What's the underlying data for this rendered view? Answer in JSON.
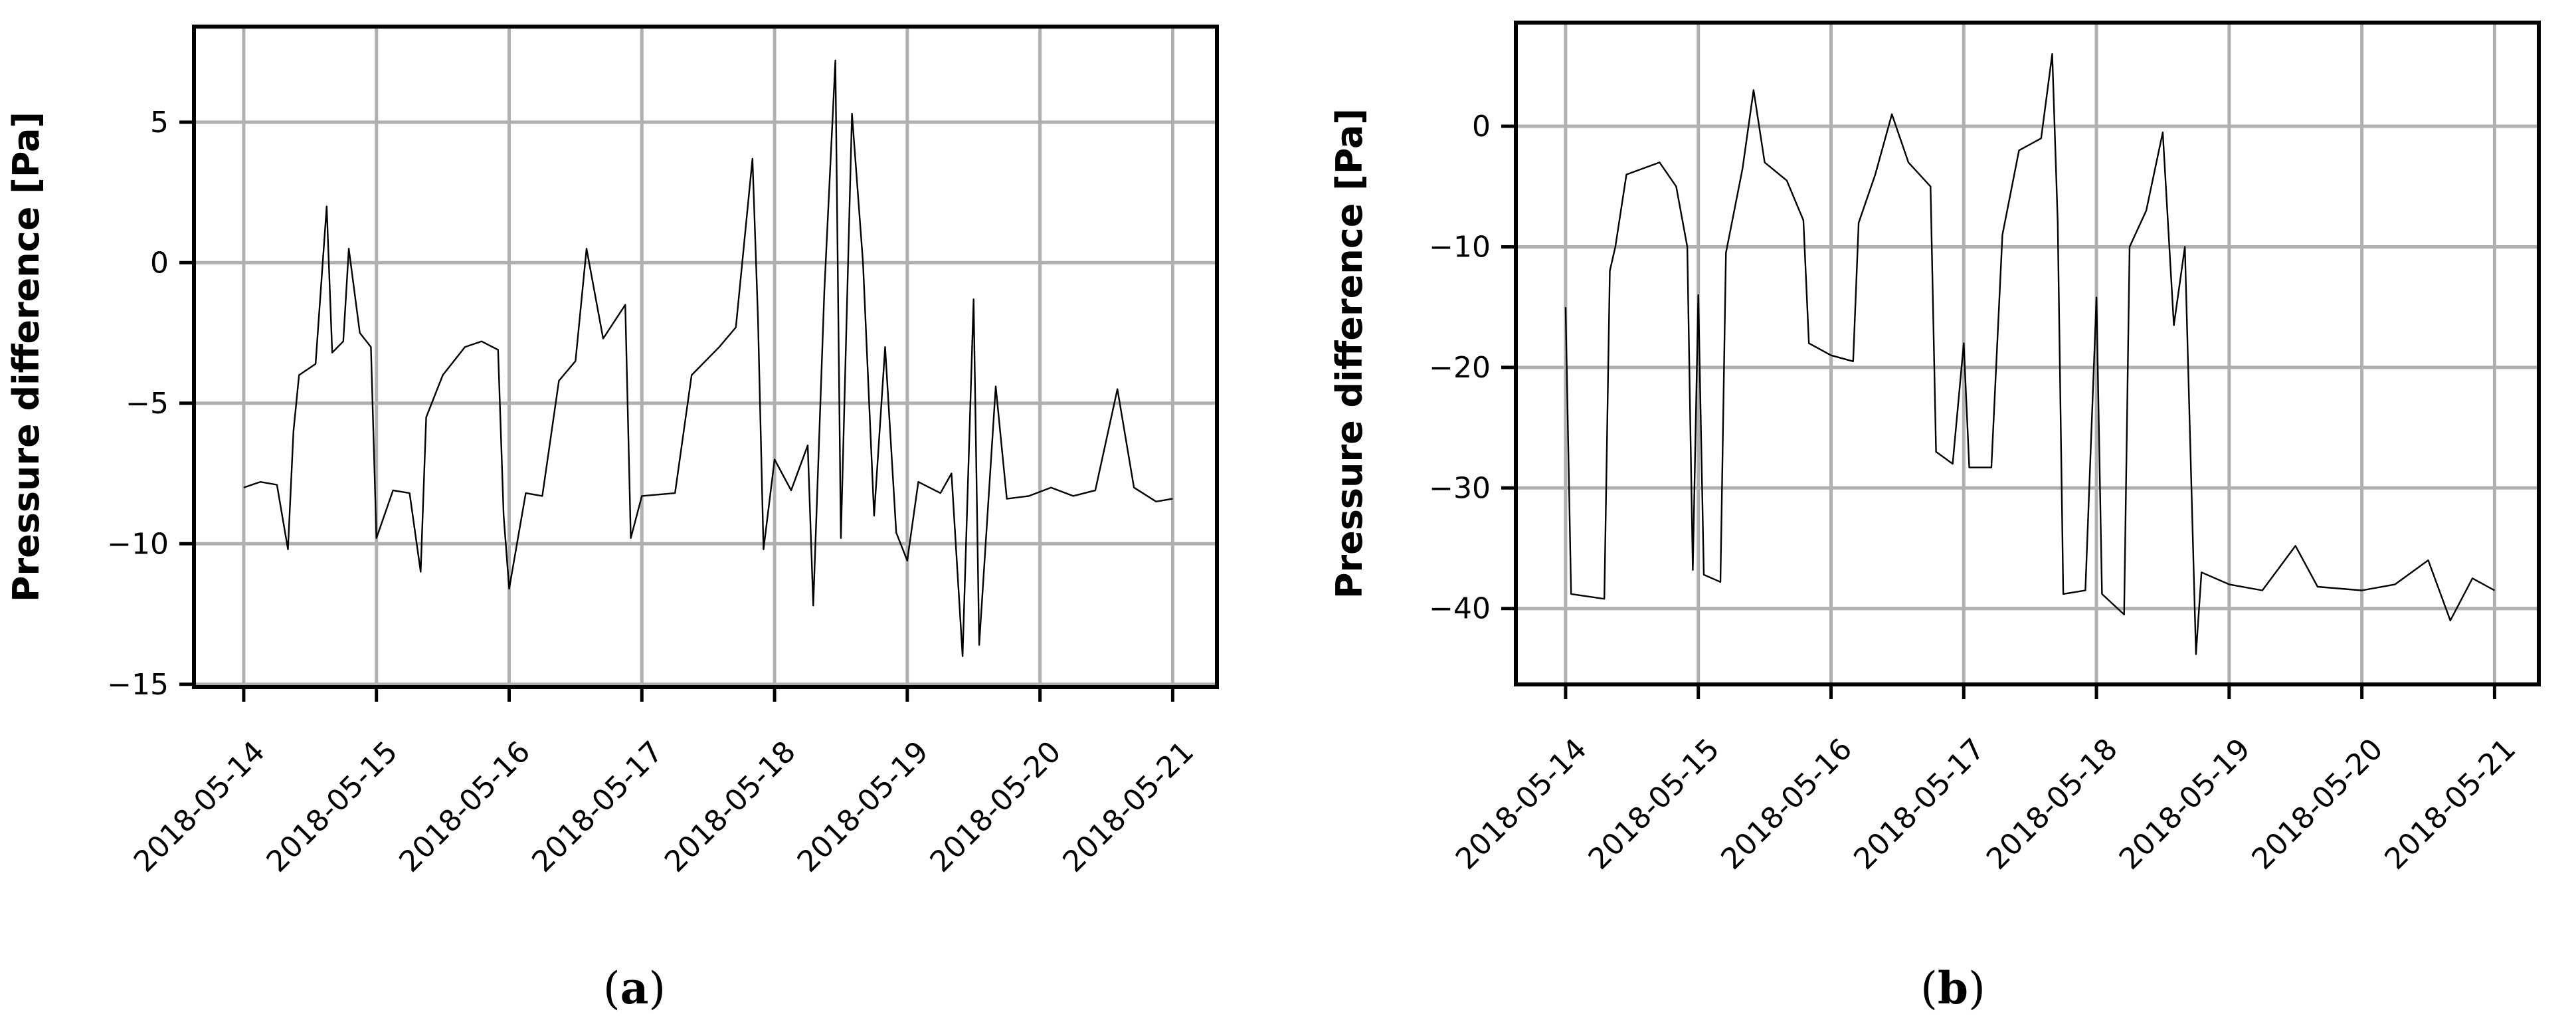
{
  "chart_data": [
    {
      "type": "line",
      "caption": "(a)",
      "caption_letter": "a",
      "title": "",
      "xlabel": "",
      "ylabel": "Pressure difference [Pa]",
      "x_ticks": [
        "2018-05-14",
        "2018-05-15",
        "2018-05-16",
        "2018-05-17",
        "2018-05-18",
        "2018-05-19",
        "2018-05-20",
        "2018-05-21"
      ],
      "y_ticks": [
        5,
        0,
        -5,
        -10,
        -15
      ],
      "y_tick_labels": [
        "5",
        "0",
        "−5",
        "−10",
        "−15"
      ],
      "xlim": [
        "2018-05-13T15:00",
        "2018-05-21T08:00"
      ],
      "ylim": [
        -15.1,
        8.4
      ],
      "grid": true,
      "series": [
        {
          "color": "#000000",
          "points": [
            [
              "2018-05-14T00:00",
              -8.0
            ],
            [
              "2018-05-14T03:00",
              -7.8
            ],
            [
              "2018-05-14T06:00",
              -7.9
            ],
            [
              "2018-05-14T08:00",
              -10.2
            ],
            [
              "2018-05-14T09:00",
              -6.0
            ],
            [
              "2018-05-14T10:00",
              -4.0
            ],
            [
              "2018-05-14T13:00",
              -3.6
            ],
            [
              "2018-05-14T15:00",
              2.0
            ],
            [
              "2018-05-14T16:00",
              -3.2
            ],
            [
              "2018-05-14T18:00",
              -2.8
            ],
            [
              "2018-05-14T19:00",
              0.5
            ],
            [
              "2018-05-14T21:00",
              -2.5
            ],
            [
              "2018-05-14T23:00",
              -3.0
            ],
            [
              "2018-05-15T00:00",
              -9.8
            ],
            [
              "2018-05-15T03:00",
              -8.1
            ],
            [
              "2018-05-15T06:00",
              -8.2
            ],
            [
              "2018-05-15T08:00",
              -11.0
            ],
            [
              "2018-05-15T09:00",
              -5.5
            ],
            [
              "2018-05-15T12:00",
              -4.0
            ],
            [
              "2018-05-15T16:00",
              -3.0
            ],
            [
              "2018-05-15T19:00",
              -2.8
            ],
            [
              "2018-05-15T22:00",
              -3.1
            ],
            [
              "2018-05-15T23:00",
              -9.0
            ],
            [
              "2018-05-16T00:00",
              -11.6
            ],
            [
              "2018-05-16T03:00",
              -8.2
            ],
            [
              "2018-05-16T06:00",
              -8.3
            ],
            [
              "2018-05-16T09:00",
              -4.2
            ],
            [
              "2018-05-16T12:00",
              -3.5
            ],
            [
              "2018-05-16T14:00",
              0.5
            ],
            [
              "2018-05-16T17:00",
              -2.7
            ],
            [
              "2018-05-16T21:00",
              -1.5
            ],
            [
              "2018-05-16T22:00",
              -9.8
            ],
            [
              "2018-05-17T00:00",
              -8.3
            ],
            [
              "2018-05-17T06:00",
              -8.2
            ],
            [
              "2018-05-17T09:00",
              -4.0
            ],
            [
              "2018-05-17T14:00",
              -3.0
            ],
            [
              "2018-05-17T17:00",
              -2.3
            ],
            [
              "2018-05-17T20:00",
              3.7
            ],
            [
              "2018-05-17T21:00",
              -2.0
            ],
            [
              "2018-05-17T22:00",
              -10.2
            ],
            [
              "2018-05-18T00:00",
              -7.0
            ],
            [
              "2018-05-18T03:00",
              -8.1
            ],
            [
              "2018-05-18T06:00",
              -6.5
            ],
            [
              "2018-05-18T07:00",
              -12.2
            ],
            [
              "2018-05-18T09:00",
              -1.0
            ],
            [
              "2018-05-18T11:00",
              7.2
            ],
            [
              "2018-05-18T12:00",
              -9.8
            ],
            [
              "2018-05-18T14:00",
              5.3
            ],
            [
              "2018-05-18T16:00",
              0.0
            ],
            [
              "2018-05-18T18:00",
              -9.0
            ],
            [
              "2018-05-18T20:00",
              -3.0
            ],
            [
              "2018-05-18T22:00",
              -9.6
            ],
            [
              "2018-05-19T00:00",
              -10.6
            ],
            [
              "2018-05-19T02:00",
              -7.8
            ],
            [
              "2018-05-19T06:00",
              -8.2
            ],
            [
              "2018-05-19T08:00",
              -7.5
            ],
            [
              "2018-05-19T10:00",
              -14.0
            ],
            [
              "2018-05-19T12:00",
              -1.3
            ],
            [
              "2018-05-19T13:00",
              -13.6
            ],
            [
              "2018-05-19T16:00",
              -4.4
            ],
            [
              "2018-05-19T18:00",
              -8.4
            ],
            [
              "2018-05-19T22:00",
              -8.3
            ],
            [
              "2018-05-20T02:00",
              -8.0
            ],
            [
              "2018-05-20T06:00",
              -8.3
            ],
            [
              "2018-05-20T10:00",
              -8.1
            ],
            [
              "2018-05-20T14:00",
              -4.5
            ],
            [
              "2018-05-20T17:00",
              -8.0
            ],
            [
              "2018-05-20T21:00",
              -8.5
            ],
            [
              "2018-05-21T00:00",
              -8.4
            ]
          ]
        }
      ]
    },
    {
      "type": "line",
      "caption": "(b)",
      "caption_letter": "b",
      "title": "",
      "xlabel": "",
      "ylabel": "Pressure difference [Pa]",
      "x_ticks": [
        "2018-05-14",
        "2018-05-15",
        "2018-05-16",
        "2018-05-17",
        "2018-05-18",
        "2018-05-19",
        "2018-05-20",
        "2018-05-21"
      ],
      "y_ticks": [
        0,
        -10,
        -20,
        -30,
        -40
      ],
      "y_tick_labels": [
        "0",
        "−10",
        "−20",
        "−30",
        "−40"
      ],
      "xlim": [
        "2018-05-13T15:00",
        "2018-05-21T08:00"
      ],
      "ylim": [
        -46.3,
        8.6
      ],
      "grid": true,
      "series": [
        {
          "color": "#000000",
          "points": [
            [
              "2018-05-14T00:00",
              -15.0
            ],
            [
              "2018-05-14T01:00",
              -38.8
            ],
            [
              "2018-05-14T04:00",
              -39.0
            ],
            [
              "2018-05-14T07:00",
              -39.2
            ],
            [
              "2018-05-14T08:00",
              -12.0
            ],
            [
              "2018-05-14T09:00",
              -10.0
            ],
            [
              "2018-05-14T11:00",
              -4.0
            ],
            [
              "2018-05-14T14:00",
              -3.5
            ],
            [
              "2018-05-14T17:00",
              -3.0
            ],
            [
              "2018-05-14T20:00",
              -5.0
            ],
            [
              "2018-05-14T22:00",
              -10.0
            ],
            [
              "2018-05-14T23:00",
              -36.8
            ],
            [
              "2018-05-15T00:00",
              -14.0
            ],
            [
              "2018-05-15T01:00",
              -37.2
            ],
            [
              "2018-05-15T04:00",
              -37.8
            ],
            [
              "2018-05-15T05:00",
              -10.5
            ],
            [
              "2018-05-15T08:00",
              -3.5
            ],
            [
              "2018-05-15T10:00",
              3.0
            ],
            [
              "2018-05-15T12:00",
              -3.0
            ],
            [
              "2018-05-15T16:00",
              -4.5
            ],
            [
              "2018-05-15T19:00",
              -7.8
            ],
            [
              "2018-05-15T20:00",
              -18.0
            ],
            [
              "2018-05-16T00:00",
              -19.0
            ],
            [
              "2018-05-16T04:00",
              -19.5
            ],
            [
              "2018-05-16T05:00",
              -8.0
            ],
            [
              "2018-05-16T08:00",
              -4.0
            ],
            [
              "2018-05-16T11:00",
              1.0
            ],
            [
              "2018-05-16T14:00",
              -3.0
            ],
            [
              "2018-05-16T18:00",
              -5.0
            ],
            [
              "2018-05-16T19:00",
              -27.0
            ],
            [
              "2018-05-16T22:00",
              -28.0
            ],
            [
              "2018-05-17T00:00",
              -18.0
            ],
            [
              "2018-05-17T01:00",
              -28.3
            ],
            [
              "2018-05-17T05:00",
              -28.3
            ],
            [
              "2018-05-17T07:00",
              -9.0
            ],
            [
              "2018-05-17T10:00",
              -2.0
            ],
            [
              "2018-05-17T14:00",
              -1.0
            ],
            [
              "2018-05-17T16:00",
              6.0
            ],
            [
              "2018-05-17T17:00",
              -8.0
            ],
            [
              "2018-05-17T18:00",
              -38.8
            ],
            [
              "2018-05-17T22:00",
              -38.5
            ],
            [
              "2018-05-18T00:00",
              -14.2
            ],
            [
              "2018-05-18T01:00",
              -38.8
            ],
            [
              "2018-05-18T05:00",
              -40.5
            ],
            [
              "2018-05-18T06:00",
              -10.0
            ],
            [
              "2018-05-18T09:00",
              -7.0
            ],
            [
              "2018-05-18T12:00",
              -0.5
            ],
            [
              "2018-05-18T14:00",
              -16.5
            ],
            [
              "2018-05-18T16:00",
              -10.0
            ],
            [
              "2018-05-18T18:00",
              -43.8
            ],
            [
              "2018-05-18T19:00",
              -37.0
            ],
            [
              "2018-05-19T00:00",
              -38.0
            ],
            [
              "2018-05-19T06:00",
              -38.5
            ],
            [
              "2018-05-19T12:00",
              -34.8
            ],
            [
              "2018-05-19T16:00",
              -38.2
            ],
            [
              "2018-05-20T00:00",
              -38.5
            ],
            [
              "2018-05-20T06:00",
              -38.0
            ],
            [
              "2018-05-20T12:00",
              -36.0
            ],
            [
              "2018-05-20T16:00",
              -41.0
            ],
            [
              "2018-05-20T20:00",
              -37.5
            ],
            [
              "2018-05-21T00:00",
              -38.5
            ]
          ]
        }
      ]
    }
  ]
}
